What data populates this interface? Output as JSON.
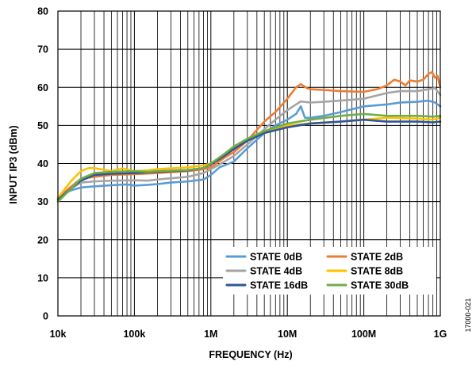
{
  "chart_data": {
    "type": "line",
    "xscale": "log",
    "xlim": [
      10000,
      1000000000
    ],
    "ylim": [
      0,
      80
    ],
    "grid": true,
    "xlabel": "FREQUENCY (Hz)",
    "ylabel": "INPUT IP3 (dBm)",
    "x_tick_values": [
      10000,
      100000,
      1000000,
      10000000,
      100000000,
      1000000000
    ],
    "x_tick_labels": [
      "10k",
      "100k",
      "1M",
      "10M",
      "100M",
      "1G"
    ],
    "y_ticks": [
      0,
      10,
      20,
      30,
      40,
      50,
      60,
      70,
      80
    ],
    "legend_position": "bottom-right",
    "figure_id": "17000-021",
    "series": [
      {
        "name": "STATE 0dB",
        "color": "#5b9bd5",
        "points": [
          [
            10000,
            30
          ],
          [
            12000,
            32
          ],
          [
            15000,
            33
          ],
          [
            20000,
            33.7
          ],
          [
            30000,
            34
          ],
          [
            50000,
            34.3
          ],
          [
            80000,
            34.5
          ],
          [
            100000,
            34.2
          ],
          [
            150000,
            34.4
          ],
          [
            200000,
            34.6
          ],
          [
            300000,
            35
          ],
          [
            500000,
            35.3
          ],
          [
            800000,
            35.8
          ],
          [
            1000000,
            37
          ],
          [
            1300000,
            39
          ],
          [
            2000000,
            40.5
          ],
          [
            3000000,
            44
          ],
          [
            5000000,
            48
          ],
          [
            7000000,
            50
          ],
          [
            10000000,
            51.5
          ],
          [
            13000000,
            53
          ],
          [
            15000000,
            55
          ],
          [
            17000000,
            52
          ],
          [
            20000000,
            52
          ],
          [
            30000000,
            52.5
          ],
          [
            50000000,
            53.5
          ],
          [
            100000000,
            55
          ],
          [
            200000000,
            55.5
          ],
          [
            300000000,
            56
          ],
          [
            500000000,
            56.2
          ],
          [
            700000000,
            56.5
          ],
          [
            850000000,
            56
          ],
          [
            1000000000,
            55
          ]
        ]
      },
      {
        "name": "STATE 2dB",
        "color": "#ed7d31",
        "points": [
          [
            10000,
            31
          ],
          [
            15000,
            34
          ],
          [
            20000,
            36
          ],
          [
            30000,
            36.5
          ],
          [
            50000,
            37
          ],
          [
            100000,
            37.2
          ],
          [
            200000,
            37.5
          ],
          [
            500000,
            38
          ],
          [
            800000,
            38.5
          ],
          [
            1000000,
            39
          ],
          [
            1500000,
            41.5
          ],
          [
            2000000,
            43
          ],
          [
            3000000,
            46
          ],
          [
            5000000,
            51
          ],
          [
            7000000,
            53.5
          ],
          [
            10000000,
            57
          ],
          [
            13000000,
            60
          ],
          [
            15000000,
            60.8
          ],
          [
            18000000,
            59.8
          ],
          [
            20000000,
            59.5
          ],
          [
            30000000,
            59.3
          ],
          [
            50000000,
            59
          ],
          [
            100000000,
            58.8
          ],
          [
            150000000,
            59.5
          ],
          [
            200000000,
            60.5
          ],
          [
            250000000,
            62
          ],
          [
            300000000,
            61.5
          ],
          [
            350000000,
            60.5
          ],
          [
            400000000,
            61.8
          ],
          [
            500000000,
            61.5
          ],
          [
            600000000,
            62
          ],
          [
            700000000,
            63.5
          ],
          [
            780000000,
            64
          ],
          [
            850000000,
            62.5
          ],
          [
            920000000,
            63
          ],
          [
            1000000000,
            60
          ]
        ]
      },
      {
        "name": "STATE 4dB",
        "color": "#a5a5a5",
        "points": [
          [
            10000,
            30
          ],
          [
            15000,
            33.5
          ],
          [
            20000,
            35
          ],
          [
            30000,
            35.3
          ],
          [
            50000,
            35.5
          ],
          [
            100000,
            35.6
          ],
          [
            150000,
            35.5
          ],
          [
            200000,
            35.8
          ],
          [
            500000,
            36.5
          ],
          [
            800000,
            37.5
          ],
          [
            1000000,
            38.5
          ],
          [
            1500000,
            40.5
          ],
          [
            2000000,
            42
          ],
          [
            3000000,
            45
          ],
          [
            5000000,
            49
          ],
          [
            7000000,
            51.5
          ],
          [
            10000000,
            54
          ],
          [
            13000000,
            55.5
          ],
          [
            15000000,
            56.3
          ],
          [
            20000000,
            56
          ],
          [
            30000000,
            56.2
          ],
          [
            50000000,
            56.5
          ],
          [
            100000000,
            57
          ],
          [
            200000000,
            58.5
          ],
          [
            300000000,
            59
          ],
          [
            500000000,
            59
          ],
          [
            700000000,
            59.5
          ],
          [
            850000000,
            59.8
          ],
          [
            1000000000,
            58
          ]
        ]
      },
      {
        "name": "STATE 8dB",
        "color": "#ffc000",
        "points": [
          [
            10000,
            31
          ],
          [
            12000,
            33
          ],
          [
            15000,
            35.5
          ],
          [
            20000,
            38
          ],
          [
            25000,
            38.8
          ],
          [
            30000,
            38.8
          ],
          [
            50000,
            38
          ],
          [
            70000,
            38.7
          ],
          [
            100000,
            38
          ],
          [
            150000,
            38.2
          ],
          [
            200000,
            38.5
          ],
          [
            500000,
            39
          ],
          [
            800000,
            39.5
          ],
          [
            1000000,
            40
          ],
          [
            1500000,
            42.5
          ],
          [
            2000000,
            44
          ],
          [
            3000000,
            46.5
          ],
          [
            5000000,
            48.5
          ],
          [
            10000000,
            50
          ],
          [
            20000000,
            50.5
          ],
          [
            50000000,
            51
          ],
          [
            100000000,
            51.5
          ],
          [
            200000000,
            52
          ],
          [
            500000000,
            51.8
          ],
          [
            800000000,
            51.5
          ],
          [
            1000000000,
            52
          ]
        ]
      },
      {
        "name": "STATE 16dB",
        "color": "#2f5597",
        "points": [
          [
            10000,
            30.5
          ],
          [
            15000,
            33.5
          ],
          [
            20000,
            35.5
          ],
          [
            30000,
            37
          ],
          [
            50000,
            37.3
          ],
          [
            100000,
            37.5
          ],
          [
            200000,
            37.8
          ],
          [
            500000,
            38.2
          ],
          [
            800000,
            38.8
          ],
          [
            1000000,
            39.8
          ],
          [
            1500000,
            42
          ],
          [
            2000000,
            43.8
          ],
          [
            3000000,
            46
          ],
          [
            5000000,
            48
          ],
          [
            10000000,
            49.5
          ],
          [
            20000000,
            50.5
          ],
          [
            50000000,
            51
          ],
          [
            100000000,
            51.5
          ],
          [
            200000000,
            51
          ],
          [
            500000000,
            51
          ],
          [
            800000000,
            50.8
          ],
          [
            1000000000,
            51
          ]
        ]
      },
      {
        "name": "STATE 30dB",
        "color": "#70ad47",
        "points": [
          [
            10000,
            30
          ],
          [
            15000,
            33.5
          ],
          [
            20000,
            36
          ],
          [
            30000,
            37.5
          ],
          [
            50000,
            37.8
          ],
          [
            100000,
            38
          ],
          [
            150000,
            37.8
          ],
          [
            200000,
            38
          ],
          [
            500000,
            38.3
          ],
          [
            800000,
            38.8
          ],
          [
            1000000,
            40
          ],
          [
            1500000,
            42.5
          ],
          [
            2000000,
            44.5
          ],
          [
            3000000,
            46.5
          ],
          [
            5000000,
            48.5
          ],
          [
            10000000,
            50.5
          ],
          [
            20000000,
            51.5
          ],
          [
            50000000,
            52.5
          ],
          [
            100000000,
            53
          ],
          [
            200000000,
            52.5
          ],
          [
            500000000,
            52.5
          ],
          [
            800000000,
            52.3
          ],
          [
            1000000000,
            52.5
          ]
        ]
      }
    ]
  }
}
